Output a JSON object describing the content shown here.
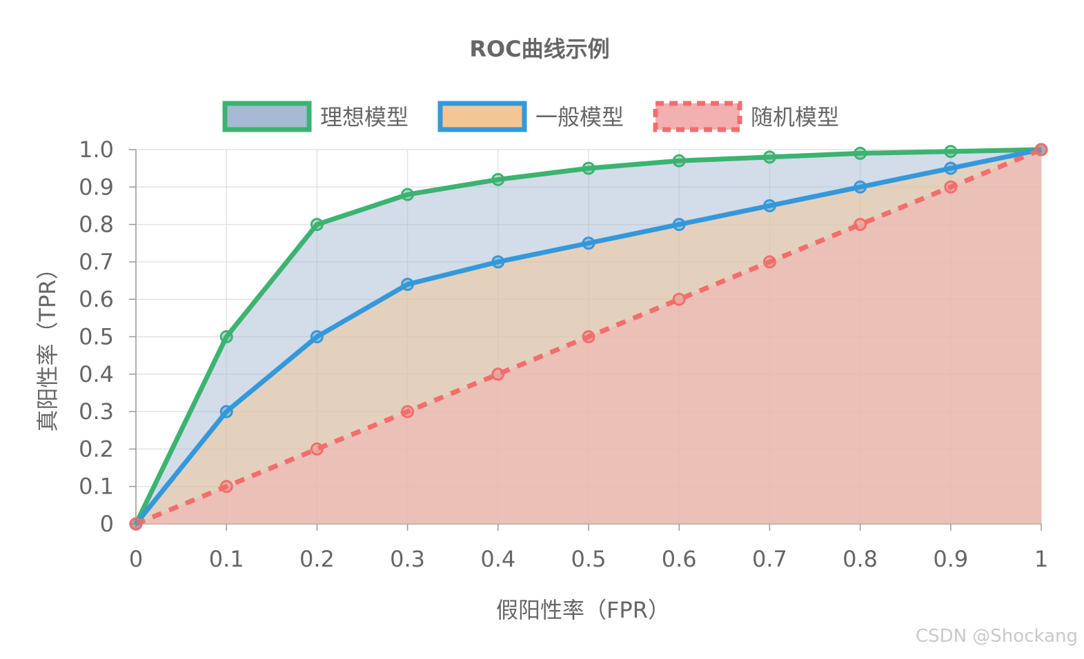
{
  "chart_data": {
    "type": "line",
    "title": "ROC曲线示例",
    "xlabel": "假阳性率（FPR）",
    "ylabel": "真阳性率（TPR）",
    "x": [
      0,
      0.1,
      0.2,
      0.3,
      0.4,
      0.5,
      0.6,
      0.7,
      0.8,
      0.9,
      1
    ],
    "x_tick_labels": [
      "0",
      "0.1",
      "0.2",
      "0.3",
      "0.4",
      "0.5",
      "0.6",
      "0.7",
      "0.8",
      "0.9",
      "1"
    ],
    "y_tick_labels": [
      "0",
      "0.1",
      "0.2",
      "0.3",
      "0.4",
      "0.5",
      "0.6",
      "0.7",
      "0.8",
      "0.9",
      "1.0"
    ],
    "y_ticks": [
      0,
      0.1,
      0.2,
      0.3,
      0.4,
      0.5,
      0.6,
      0.7,
      0.8,
      0.9,
      1.0
    ],
    "xlim": [
      0,
      1
    ],
    "ylim": [
      0,
      1
    ],
    "grid": true,
    "legend_position": "top",
    "series": [
      {
        "name": "理想模型",
        "values": [
          0,
          0.5,
          0.8,
          0.88,
          0.92,
          0.95,
          0.97,
          0.98,
          0.99,
          0.995,
          1.0
        ],
        "line_color": "#3cb371",
        "fill_color": "#a7b9d3",
        "dashed": false
      },
      {
        "name": "一般模型",
        "values": [
          0,
          0.3,
          0.5,
          0.64,
          0.7,
          0.75,
          0.8,
          0.85,
          0.9,
          0.95,
          1.0
        ],
        "line_color": "#3498db",
        "fill_color": "#f5c592",
        "dashed": false
      },
      {
        "name": "随机模型",
        "values": [
          0,
          0.1,
          0.2,
          0.3,
          0.4,
          0.5,
          0.6,
          0.7,
          0.8,
          0.9,
          1.0
        ],
        "line_color": "#f26d6d",
        "fill_color": "#f2b0b0",
        "dashed": true
      }
    ]
  },
  "watermark": "CSDN @Shockang"
}
